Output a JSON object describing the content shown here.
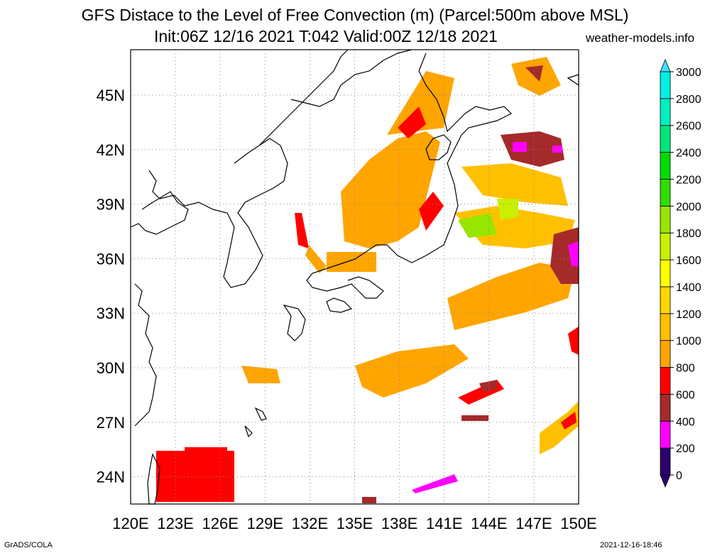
{
  "header": {
    "title_line1": "GFS Distace to the Level of Free Convection (m) (Parcel:500m above MSL)",
    "title_line2": "Init:06Z 12/16 2021 T:042 Valid:00Z 12/18 2021",
    "site": "weather-models.info"
  },
  "footer": {
    "software": "GrADS/COLA",
    "timestamp": "2021-12-16-18:46"
  },
  "map": {
    "lon_labels": [
      "120E",
      "123E",
      "126E",
      "129E",
      "132E",
      "135E",
      "138E",
      "141E",
      "144E",
      "147E",
      "150E"
    ],
    "lat_labels": [
      "24N",
      "27N",
      "30N",
      "33N",
      "36N",
      "39N",
      "42N",
      "45N"
    ],
    "lon_range": [
      120,
      150
    ],
    "lat_range": [
      22.5,
      47.5
    ],
    "grid": true
  },
  "colorbar": {
    "levels": [
      "0",
      "200",
      "400",
      "600",
      "800",
      "1000",
      "1200",
      "1400",
      "1600",
      "1800",
      "2000",
      "2200",
      "2400",
      "2600",
      "2800",
      "3000"
    ],
    "colors": [
      "#2b006b",
      "#ff00ff",
      "#a52a2a",
      "#ff0000",
      "#ffa500",
      "#ffc000",
      "#ffd700",
      "#ffff00",
      "#c8f000",
      "#96e600",
      "#32dc00",
      "#00dc00",
      "#00e678",
      "#00f0c0",
      "#00f0e6",
      "#40e0ff"
    ],
    "under_color": "#2b006b",
    "over_color": "#40e0ff"
  }
}
